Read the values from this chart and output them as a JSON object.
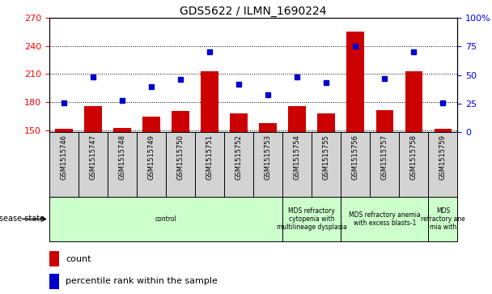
{
  "title": "GDS5622 / ILMN_1690224",
  "samples": [
    "GSM1515746",
    "GSM1515747",
    "GSM1515748",
    "GSM1515749",
    "GSM1515750",
    "GSM1515751",
    "GSM1515752",
    "GSM1515753",
    "GSM1515754",
    "GSM1515755",
    "GSM1515756",
    "GSM1515757",
    "GSM1515758",
    "GSM1515759"
  ],
  "counts": [
    152,
    176,
    153,
    165,
    171,
    213,
    168,
    158,
    176,
    168,
    255,
    172,
    213,
    152
  ],
  "percentiles": [
    26,
    48,
    28,
    40,
    46,
    70,
    42,
    33,
    48,
    43,
    75,
    47,
    70,
    26
  ],
  "ylim_left": [
    148,
    270
  ],
  "ylim_right": [
    0,
    100
  ],
  "yticks_left": [
    150,
    180,
    210,
    240,
    270
  ],
  "yticks_right": [
    0,
    25,
    50,
    75,
    100
  ],
  "bar_color": "#cc0000",
  "dot_color": "#0000cc",
  "bar_bottom": 148,
  "disease_groups": [
    {
      "label": "control",
      "start": 0,
      "end": 8
    },
    {
      "label": "MDS refractory\ncytopenia with\nmultilineage dysplasia",
      "start": 8,
      "end": 10
    },
    {
      "label": "MDS refractory anemia\nwith excess blasts-1",
      "start": 10,
      "end": 13
    },
    {
      "label": "MDS\nrefractory ane\nmia with",
      "start": 13,
      "end": 14
    }
  ],
  "disease_bg": "#ccffcc",
  "sample_bg": "#d3d3d3",
  "plot_bg": "#ffffff",
  "border_color": "#000000"
}
